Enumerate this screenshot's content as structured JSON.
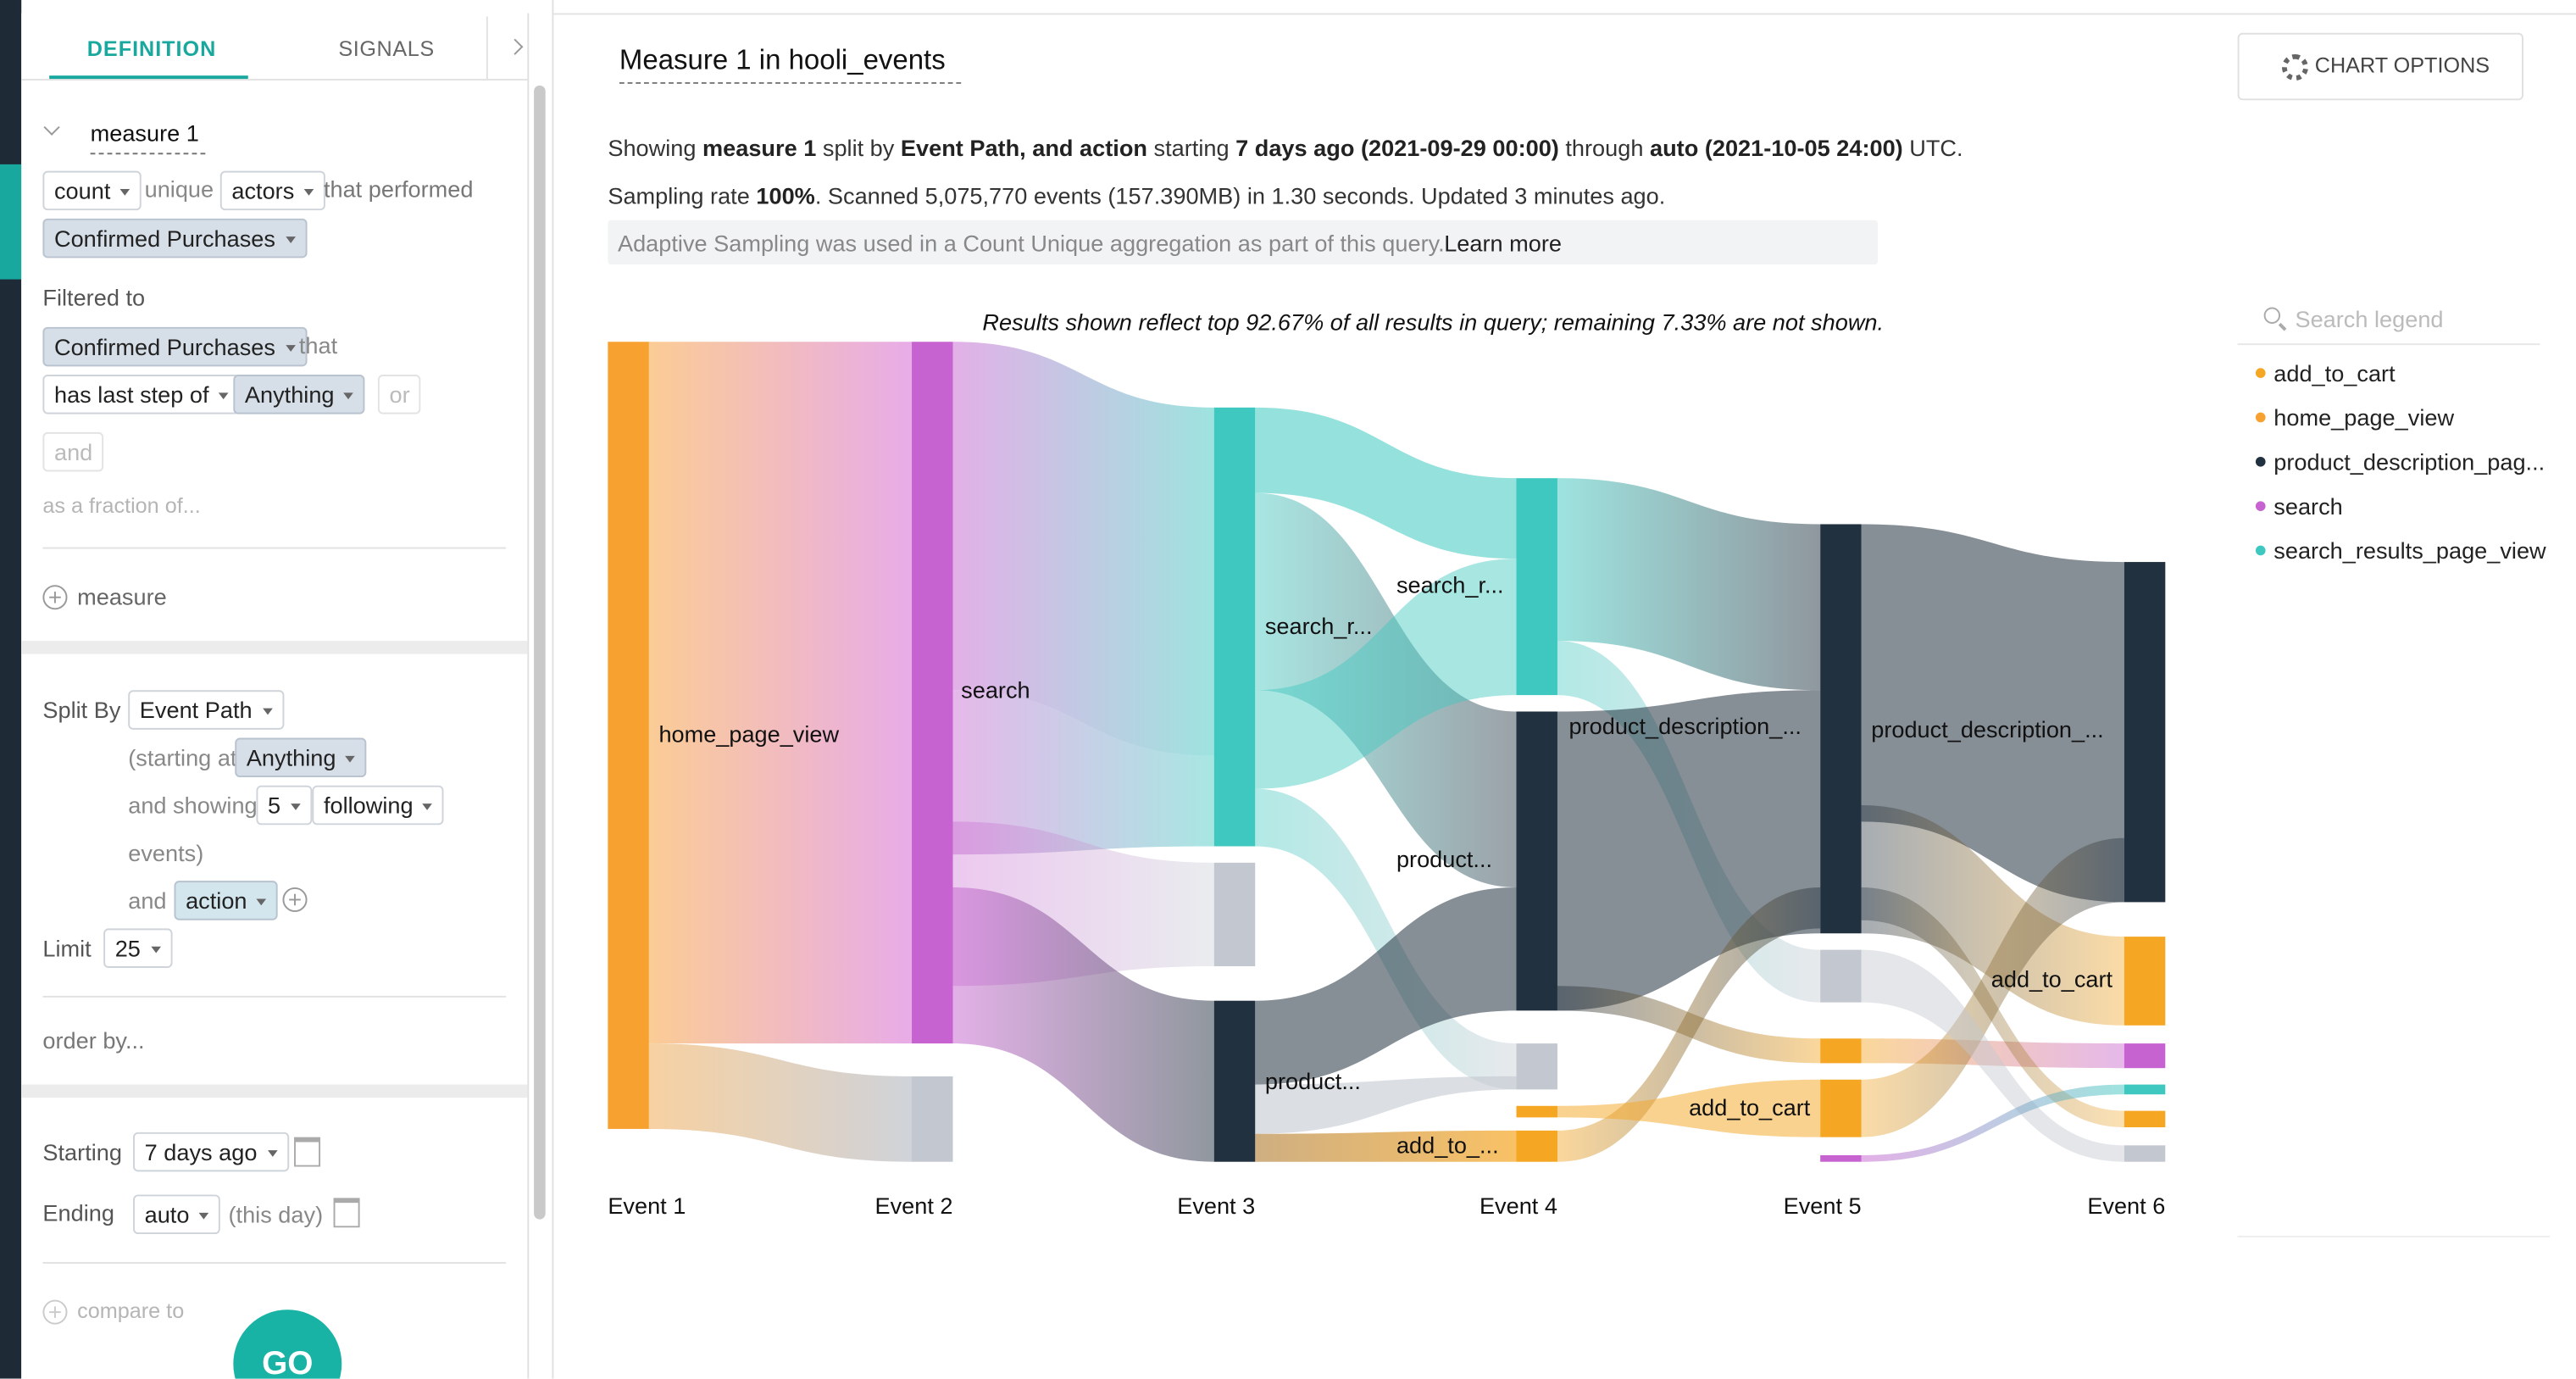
{
  "tabs": [
    "DEFINITION",
    "SIGNALS"
  ],
  "definition": {
    "measure_name": "measure 1",
    "aggregation": "count",
    "unique": "unique",
    "target": "actors",
    "that_performed": "that performed",
    "event": "Confirmed Purchases",
    "filtered_to": "Filtered to",
    "filter_event": "Confirmed Purchases",
    "that": "that",
    "condition": "has last step of",
    "condition_value": "Anything",
    "or": "or",
    "and_button": "and",
    "fraction": "as a fraction of...",
    "add_measure": "measure",
    "split_by": "Split By",
    "split_value": "Event Path",
    "starting_at": "(starting at",
    "starting_value": "Anything",
    "and_showing": "and showing",
    "showing_count": "5",
    "showing_direction": "following",
    "events_close": "events)",
    "and": "and",
    "and_value": "action",
    "limit": "Limit",
    "limit_value": "25",
    "order_by": "order by...",
    "starting": "Starting",
    "starting_date": "7 days ago",
    "ending": "Ending",
    "ending_date": "auto",
    "this_day": "(this day)",
    "compare_to": "compare to",
    "go": "GO"
  },
  "header": {
    "title": "Measure 1 in hooli_events",
    "chart_options": "CHART OPTIONS"
  },
  "summary": [
    [
      {
        "text": "Showing ",
        "bold": false
      },
      {
        "text": "measure 1",
        "bold": true
      },
      {
        "text": " split by ",
        "bold": false
      },
      {
        "text": "Event Path, and action",
        "bold": true
      },
      {
        "text": " starting ",
        "bold": false
      },
      {
        "text": "7 days ago (2021-09-29 00:00)",
        "bold": true
      },
      {
        "text": " through ",
        "bold": false
      },
      {
        "text": "auto (2021-10-05 24:00)",
        "bold": true
      },
      {
        "text": " UTC.",
        "bold": false
      }
    ],
    [
      {
        "text": "Sampling rate ",
        "bold": false
      },
      {
        "text": "100%",
        "bold": true
      },
      {
        "text": ". Scanned 5,075,770 events (157.390MB) in 1.30 seconds. Updated 3 minutes ago.",
        "bold": false
      }
    ]
  ],
  "notice": {
    "text": "Adaptive Sampling was used in a Count Unique aggregation as part of this query.",
    "link": "Learn more"
  },
  "sankey": {
    "note": "Results shown reflect top 92.67% of all results in query; remaining 7.33% are not shown.",
    "steps": [
      "Event 1",
      "Event 2",
      "Event 3",
      "Event 4",
      "Event 5",
      "Event 6"
    ],
    "node_labels": [
      "home_page_view",
      "search",
      "search_r...",
      "product...",
      "search_r...",
      "product...",
      "add_to_...",
      "product_description_...",
      "add_to_cart",
      "product_description_...",
      "add_to_cart"
    ]
  },
  "legend": {
    "search_placeholder": "Search legend",
    "items": [
      {
        "name": "add_to_cart",
        "color": "#f5a623"
      },
      {
        "name": "home_page_view",
        "color": "#f7a130"
      },
      {
        "name": "product_description_pag...",
        "color": "#22313f"
      },
      {
        "name": "search",
        "color": "#c763d0"
      },
      {
        "name": "search_results_page_view",
        "color": "#3ec8c0"
      }
    ]
  }
}
